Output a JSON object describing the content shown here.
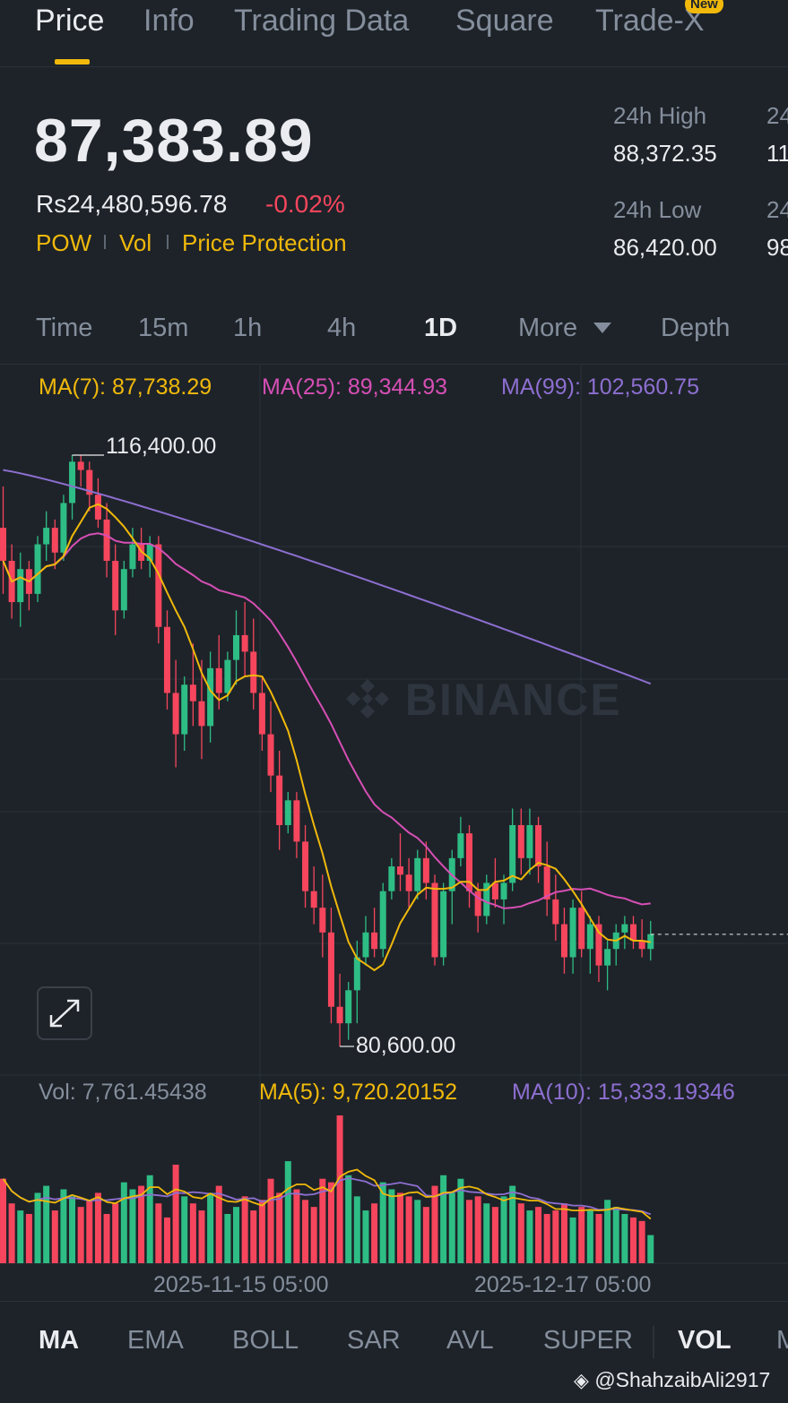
{
  "tabs": [
    {
      "label": "Price",
      "active": true
    },
    {
      "label": "Info"
    },
    {
      "label": "Trading Data"
    },
    {
      "label": "Square"
    },
    {
      "label": "Trade-X",
      "badge": "New"
    }
  ],
  "ticker": {
    "last_price": "87,383.89",
    "fiat_price": "Rs24,480,596.78",
    "change": "-0.02%",
    "tags": [
      "POW",
      "Vol",
      "Price Protection"
    ]
  },
  "stats": {
    "high_label": "24h High",
    "high_value": "88,372.35",
    "low_label": "24h Low",
    "low_value": "86,420.00",
    "col2_label_top": "24",
    "col2_value_top": "11",
    "col2_label_bottom": "24",
    "col2_value_bottom": "98"
  },
  "intervals": [
    {
      "label": "Time"
    },
    {
      "label": "15m"
    },
    {
      "label": "1h"
    },
    {
      "label": "4h"
    },
    {
      "label": "1D",
      "active": true
    },
    {
      "label": "More"
    },
    {
      "label": "Depth"
    }
  ],
  "ma_legend": {
    "ma7": "MA(7): 87,738.29",
    "ma25": "MA(25): 89,344.93",
    "ma99": "MA(99): 102,560.75"
  },
  "chart_labels": {
    "high_marker": "116,400.00",
    "low_marker": "80,600.00",
    "watermark": "BINANCE"
  },
  "vol_legend": {
    "vol": "Vol: 7,761.45438",
    "ma5": "MA(5): 9,720.20152",
    "ma10": "MA(10): 15,333.19346"
  },
  "x_axis": [
    "2025-11-15 05:00",
    "2025-12-17 05:00"
  ],
  "indicators": [
    {
      "label": "MA",
      "active": true
    },
    {
      "label": "EMA"
    },
    {
      "label": "BOLL"
    },
    {
      "label": "SAR"
    },
    {
      "label": "AVL"
    },
    {
      "label": "SUPER"
    },
    {
      "label": "VOL",
      "active": true
    },
    {
      "label": "M"
    }
  ],
  "credit": "@ShahzaibAli2917",
  "colors": {
    "up": "#2ebd85",
    "down": "#f6465d",
    "ma7": "#f0b90b",
    "ma25": "#d64fb5",
    "ma99": "#8d6fd1",
    "accent": "#f0b90b"
  },
  "chart_data": {
    "type": "candlestick",
    "interval": "1D",
    "ohlc": [
      [
        112000,
        114500,
        108000,
        110000
      ],
      [
        110000,
        111000,
        106500,
        107500
      ],
      [
        107500,
        110500,
        106000,
        109500
      ],
      [
        109500,
        110000,
        107000,
        108000
      ],
      [
        108000,
        111500,
        107500,
        111000
      ],
      [
        111000,
        113000,
        110000,
        112000
      ],
      [
        112000,
        112500,
        109500,
        110500
      ],
      [
        110500,
        114000,
        110000,
        113500
      ],
      [
        113500,
        116400,
        112500,
        116000
      ],
      [
        116000,
        116400,
        114500,
        115500
      ],
      [
        115500,
        116000,
        113000,
        114000
      ],
      [
        114000,
        115000,
        112000,
        112500
      ],
      [
        112500,
        113500,
        109000,
        110000
      ],
      [
        110000,
        111000,
        105500,
        107000
      ],
      [
        107000,
        110000,
        106500,
        109500
      ],
      [
        109500,
        112000,
        109000,
        111000
      ],
      [
        111000,
        112000,
        109500,
        110000
      ],
      [
        110000,
        111500,
        109000,
        111000
      ],
      [
        111000,
        111500,
        105000,
        106000
      ],
      [
        106000,
        107000,
        101000,
        102000
      ],
      [
        102000,
        104000,
        97500,
        99500
      ],
      [
        99500,
        103000,
        98500,
        102500
      ],
      [
        102500,
        105000,
        100000,
        101500
      ],
      [
        101500,
        104000,
        98000,
        100000
      ],
      [
        100000,
        104500,
        99000,
        103500
      ],
      [
        103500,
        105500,
        101000,
        102000
      ],
      [
        102000,
        104500,
        101500,
        104000
      ],
      [
        104000,
        107000,
        102500,
        105500
      ],
      [
        105500,
        107500,
        103000,
        104500
      ],
      [
        104500,
        106500,
        101000,
        102000
      ],
      [
        102000,
        103000,
        98500,
        99500
      ],
      [
        99500,
        101500,
        96000,
        97000
      ],
      [
        97000,
        98500,
        92500,
        94000
      ],
      [
        94000,
        96000,
        93500,
        95500
      ],
      [
        95500,
        96000,
        92000,
        93000
      ],
      [
        93000,
        94000,
        89000,
        90000
      ],
      [
        90000,
        91500,
        88000,
        89000
      ],
      [
        89000,
        91000,
        86000,
        87500
      ],
      [
        87500,
        89000,
        82000,
        83000
      ],
      [
        83000,
        85000,
        80600,
        82000
      ],
      [
        82000,
        84500,
        81000,
        84000
      ],
      [
        84000,
        87000,
        82000,
        86000
      ],
      [
        86000,
        88500,
        85500,
        87500
      ],
      [
        87500,
        89000,
        86000,
        86500
      ],
      [
        86500,
        90500,
        86000,
        90000
      ],
      [
        90000,
        92000,
        89500,
        91500
      ],
      [
        91500,
        93500,
        90000,
        91000
      ],
      [
        91000,
        92000,
        89000,
        90000
      ],
      [
        90000,
        92500,
        89500,
        92000
      ],
      [
        92000,
        93000,
        89500,
        90500
      ],
      [
        90500,
        91000,
        85500,
        86000
      ],
      [
        86000,
        90500,
        85500,
        90000
      ],
      [
        90000,
        92500,
        88000,
        92000
      ],
      [
        92000,
        94500,
        91500,
        93500
      ],
      [
        93500,
        94000,
        89000,
        90000
      ],
      [
        90000,
        90500,
        87500,
        88500
      ],
      [
        88500,
        91000,
        88000,
        90500
      ],
      [
        90500,
        92000,
        89000,
        89500
      ],
      [
        89500,
        91000,
        88000,
        90500
      ],
      [
        90500,
        95000,
        90000,
        94000
      ],
      [
        94000,
        95000,
        91000,
        92000
      ],
      [
        92000,
        95000,
        91000,
        94000
      ],
      [
        94000,
        94500,
        90500,
        91500
      ],
      [
        91500,
        93000,
        88500,
        89500
      ],
      [
        89500,
        91000,
        87000,
        88000
      ],
      [
        88000,
        89000,
        85000,
        86000
      ],
      [
        86000,
        89500,
        85000,
        89000
      ],
      [
        89000,
        90000,
        86000,
        86500
      ],
      [
        86500,
        88500,
        85000,
        88000
      ],
      [
        88000,
        88500,
        84500,
        85500
      ],
      [
        85500,
        87000,
        84000,
        86500
      ],
      [
        86500,
        88000,
        85500,
        87500
      ],
      [
        87500,
        88500,
        86500,
        88000
      ],
      [
        88000,
        88500,
        86500,
        87000
      ],
      [
        87000,
        88300,
        86000,
        86500
      ],
      [
        86500,
        88200,
        85800,
        87400
      ]
    ],
    "volume": [
      24000,
      17000,
      15000,
      14000,
      20000,
      22000,
      15000,
      21000,
      19000,
      16000,
      18000,
      20000,
      14000,
      17000,
      23000,
      21000,
      22000,
      25000,
      17000,
      13000,
      28000,
      19000,
      17000,
      15000,
      20000,
      22000,
      14000,
      16000,
      19000,
      15000,
      18000,
      24000,
      20000,
      29000,
      21000,
      18000,
      16000,
      24000,
      23000,
      42000,
      25000,
      19000,
      15000,
      17000,
      23000,
      21000,
      20000,
      19000,
      18000,
      16000,
      22000,
      25000,
      20000,
      24000,
      18000,
      19000,
      17000,
      16000,
      19000,
      22000,
      17000,
      15000,
      16000,
      14000,
      15000,
      17000,
      13000,
      16000,
      15000,
      14000,
      18000,
      16000,
      14000,
      13000,
      12000,
      8000
    ],
    "x_labels": [
      "2025-11-15 05:00",
      "2025-12-17 05:00"
    ],
    "high_label": 116400,
    "low_label": 80600,
    "last_price": 87383.89
  }
}
